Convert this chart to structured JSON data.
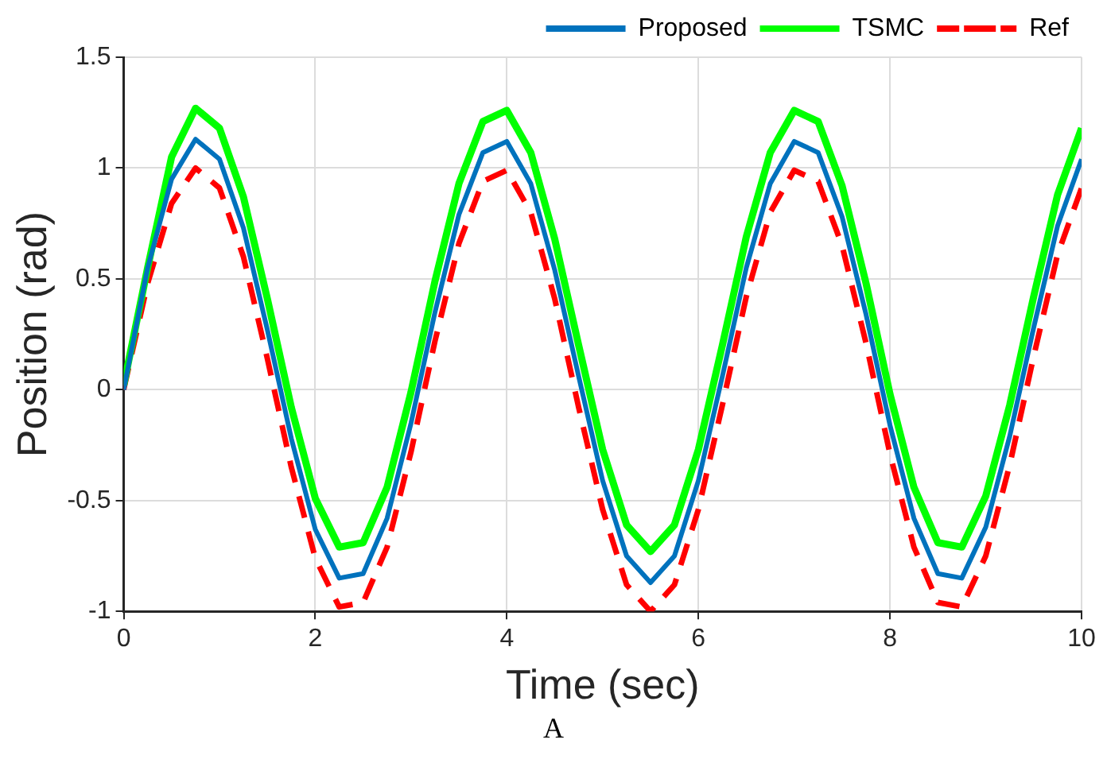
{
  "chart_data": {
    "type": "line",
    "xlabel": "Time (sec)",
    "ylabel": "Position (rad)",
    "annotations": [
      "A"
    ],
    "x": [
      0,
      0.25,
      0.5,
      0.75,
      1,
      1.25,
      1.5,
      1.75,
      2,
      2.25,
      2.5,
      2.75,
      3,
      3.25,
      3.5,
      3.75,
      4,
      4.25,
      4.5,
      4.75,
      5,
      5.25,
      5.5,
      5.75,
      6,
      6.25,
      6.5,
      6.75,
      7,
      7.25,
      7.5,
      7.75,
      8,
      8.25,
      8.5,
      8.75,
      9,
      9.25,
      9.5,
      9.75,
      10
    ],
    "series": [
      {
        "name": "Proposed",
        "color": "#0072bd",
        "line_style": "solid",
        "values": [
          0,
          0.55,
          0.95,
          1.13,
          1.04,
          0.73,
          0.27,
          -0.22,
          -0.63,
          -0.85,
          -0.83,
          -0.58,
          -0.15,
          0.35,
          0.79,
          1.07,
          1.12,
          0.93,
          0.54,
          0.06,
          -0.41,
          -0.75,
          -0.87,
          -0.75,
          -0.41,
          0.06,
          0.55,
          0.93,
          1.12,
          1.07,
          0.78,
          0.34,
          -0.16,
          -0.58,
          -0.83,
          -0.85,
          -0.62,
          -0.21,
          0.28,
          0.74,
          1.04
        ]
      },
      {
        "name": "TSMC",
        "color": "#00ff00",
        "line_style": "solid",
        "values": [
          0.02,
          0.55,
          1.05,
          1.27,
          1.18,
          0.87,
          0.41,
          -0.08,
          -0.49,
          -0.71,
          -0.69,
          -0.44,
          -0.01,
          0.49,
          0.93,
          1.21,
          1.26,
          1.07,
          0.68,
          0.2,
          -0.27,
          -0.61,
          -0.73,
          -0.61,
          -0.27,
          0.2,
          0.69,
          1.07,
          1.26,
          1.21,
          0.92,
          0.48,
          -0.02,
          -0.44,
          -0.69,
          -0.71,
          -0.48,
          -0.07,
          0.42,
          0.88,
          1.18
        ]
      },
      {
        "name": "Ref",
        "color": "#ff0000",
        "line_style": "dashed",
        "values": [
          0,
          0.48,
          0.84,
          1,
          0.91,
          0.6,
          0.14,
          -0.35,
          -0.76,
          -0.98,
          -0.96,
          -0.71,
          -0.28,
          0.22,
          0.66,
          0.94,
          0.99,
          0.8,
          0.41,
          -0.08,
          -0.54,
          -0.88,
          -1,
          -0.88,
          -0.54,
          -0.07,
          0.42,
          0.8,
          0.99,
          0.94,
          0.65,
          0.21,
          -0.29,
          -0.71,
          -0.96,
          -0.98,
          -0.75,
          -0.34,
          0.15,
          0.61,
          0.91
        ]
      }
    ],
    "xlim": [
      0,
      10
    ],
    "xticks": [
      0,
      2,
      4,
      6,
      8,
      10
    ],
    "ylim": [
      -1,
      1.5
    ],
    "yticks": [
      -1,
      -0.5,
      0,
      0.5,
      1,
      1.5
    ],
    "grid": true,
    "legend": "top right"
  }
}
